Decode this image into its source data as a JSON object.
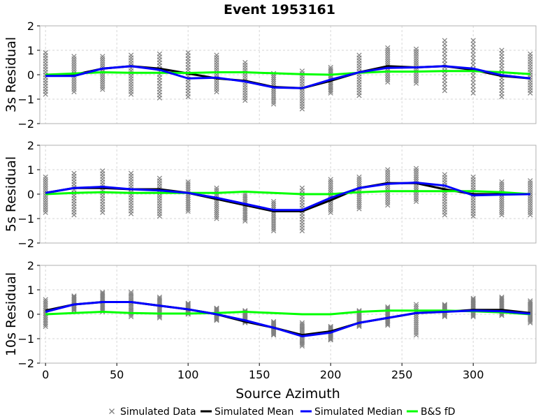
{
  "chart_data": {
    "type": "scatter",
    "title": "Event 1953161",
    "xlabel": "Source Azimuth",
    "xlim": [
      -4,
      344
    ],
    "x_ticks": [
      0,
      50,
      100,
      150,
      200,
      250,
      300
    ],
    "grid": true,
    "legend_position": "bottom",
    "legend": [
      {
        "name": "Simulated Data",
        "kind": "marker",
        "color": "#808080"
      },
      {
        "name": "Simulated Mean",
        "kind": "line",
        "color": "#000000"
      },
      {
        "name": "Simulated Median",
        "kind": "line",
        "color": "#0000ff"
      },
      {
        "name": "B&S fD",
        "kind": "line",
        "color": "#00ff00"
      }
    ],
    "azimuths": [
      0,
      20,
      40,
      60,
      80,
      100,
      120,
      140,
      160,
      180,
      200,
      220,
      240,
      260,
      280,
      300,
      320,
      340
    ],
    "panels": [
      {
        "ylabel": "3s Residual",
        "ylim": [
          -2,
          2
        ],
        "y_ticks": [
          -2,
          -1,
          0,
          1,
          2
        ],
        "scatter_ranges": [
          [
            -0.8,
            0.9
          ],
          [
            -0.7,
            0.75
          ],
          [
            -0.6,
            0.75
          ],
          [
            -0.8,
            0.8
          ],
          [
            -0.95,
            0.85
          ],
          [
            -0.9,
            0.9
          ],
          [
            -0.7,
            0.8
          ],
          [
            -1.05,
            0.5
          ],
          [
            -1.2,
            0.05
          ],
          [
            -1.4,
            0.15
          ],
          [
            -0.75,
            0.3
          ],
          [
            -0.85,
            0.8
          ],
          [
            -0.3,
            1.1
          ],
          [
            -0.35,
            1.05
          ],
          [
            -0.65,
            1.4
          ],
          [
            -0.75,
            1.4
          ],
          [
            -0.9,
            1.0
          ],
          [
            -0.75,
            0.85
          ]
        ],
        "series": [
          {
            "name": "Simulated Mean",
            "color": "#000000",
            "values": [
              -0.02,
              0.0,
              0.25,
              0.35,
              0.25,
              0.05,
              -0.15,
              -0.25,
              -0.5,
              -0.55,
              -0.25,
              0.1,
              0.35,
              0.3,
              0.35,
              0.2,
              -0.05,
              -0.15
            ]
          },
          {
            "name": "Simulated Median",
            "color": "#0000ff",
            "values": [
              -0.05,
              -0.05,
              0.25,
              0.35,
              0.2,
              -0.15,
              -0.12,
              -0.28,
              -0.52,
              -0.55,
              -0.2,
              0.1,
              0.28,
              0.3,
              0.35,
              0.25,
              -0.02,
              -0.15
            ]
          },
          {
            "name": "B&S fD",
            "color": "#00ff00",
            "values": [
              0.0,
              0.05,
              0.1,
              0.08,
              0.08,
              0.07,
              0.1,
              0.1,
              0.06,
              0.02,
              0.0,
              0.08,
              0.13,
              0.13,
              0.15,
              0.15,
              0.1,
              0.03
            ]
          }
        ]
      },
      {
        "ylabel": "5s Residual",
        "ylim": [
          -2,
          2
        ],
        "y_ticks": [
          -2,
          -1,
          0,
          1,
          2
        ],
        "scatter_ranges": [
          [
            -0.75,
            0.7
          ],
          [
            -0.85,
            0.85
          ],
          [
            -0.75,
            0.95
          ],
          [
            -0.8,
            0.85
          ],
          [
            -0.9,
            0.65
          ],
          [
            -0.7,
            0.5
          ],
          [
            -1.0,
            0.25
          ],
          [
            -1.1,
            0.0
          ],
          [
            -1.5,
            -0.3
          ],
          [
            -1.5,
            0.25
          ],
          [
            -0.75,
            0.6
          ],
          [
            -0.6,
            0.7
          ],
          [
            -0.45,
            1.0
          ],
          [
            -0.3,
            1.05
          ],
          [
            -0.85,
            0.8
          ],
          [
            -0.9,
            0.7
          ],
          [
            -0.85,
            0.5
          ],
          [
            -0.85,
            0.55
          ]
        ],
        "series": [
          {
            "name": "Simulated Mean",
            "color": "#000000",
            "values": [
              0.05,
              0.25,
              0.25,
              0.2,
              0.2,
              0.05,
              -0.2,
              -0.45,
              -0.7,
              -0.7,
              -0.25,
              0.25,
              0.45,
              0.45,
              0.2,
              0.0,
              0.0,
              0.0
            ]
          },
          {
            "name": "Simulated Median",
            "color": "#0000ff",
            "values": [
              0.05,
              0.25,
              0.3,
              0.2,
              0.15,
              0.05,
              -0.15,
              -0.4,
              -0.65,
              -0.65,
              -0.15,
              0.25,
              0.42,
              0.47,
              0.35,
              -0.05,
              -0.02,
              0.0
            ]
          },
          {
            "name": "B&S fD",
            "color": "#00ff00",
            "values": [
              0.0,
              0.05,
              0.08,
              0.05,
              0.05,
              0.05,
              0.05,
              0.1,
              0.05,
              0.0,
              0.0,
              0.08,
              0.12,
              0.12,
              0.12,
              0.12,
              0.08,
              0.0
            ]
          }
        ]
      },
      {
        "ylabel": "10s Residual",
        "ylim": [
          -2,
          2
        ],
        "y_ticks": [
          -2,
          -1,
          0,
          1,
          2
        ],
        "scatter_ranges": [
          [
            -0.5,
            0.6
          ],
          [
            0.15,
            0.75
          ],
          [
            0.1,
            0.9
          ],
          [
            -0.1,
            0.9
          ],
          [
            -0.15,
            0.7
          ],
          [
            0.0,
            0.45
          ],
          [
            -0.25,
            0.25
          ],
          [
            -0.35,
            0.15
          ],
          [
            -0.85,
            -0.3
          ],
          [
            -1.3,
            -0.35
          ],
          [
            -1.05,
            -0.5
          ],
          [
            -0.5,
            0.15
          ],
          [
            -0.45,
            0.3
          ],
          [
            -0.85,
            0.4
          ],
          [
            -0.1,
            0.4
          ],
          [
            -0.1,
            0.65
          ],
          [
            -0.05,
            0.7
          ],
          [
            -0.35,
            0.55
          ]
        ],
        "series": [
          {
            "name": "Simulated Mean",
            "color": "#000000",
            "values": [
              0.15,
              0.4,
              0.5,
              0.5,
              0.35,
              0.2,
              0.0,
              -0.3,
              -0.55,
              -0.85,
              -0.7,
              -0.35,
              -0.15,
              0.05,
              0.1,
              0.18,
              0.18,
              0.05
            ]
          },
          {
            "name": "Simulated Median",
            "color": "#0000ff",
            "values": [
              0.1,
              0.4,
              0.5,
              0.5,
              0.35,
              0.2,
              0.0,
              -0.25,
              -0.55,
              -0.9,
              -0.75,
              -0.35,
              -0.15,
              0.05,
              0.1,
              0.15,
              0.12,
              0.02
            ]
          },
          {
            "name": "B&S fD",
            "color": "#00ff00",
            "values": [
              0.0,
              0.05,
              0.1,
              0.05,
              0.03,
              0.03,
              0.05,
              0.1,
              0.05,
              0.0,
              0.0,
              0.1,
              0.15,
              0.15,
              0.15,
              0.12,
              0.08,
              0.0
            ]
          }
        ]
      }
    ]
  }
}
